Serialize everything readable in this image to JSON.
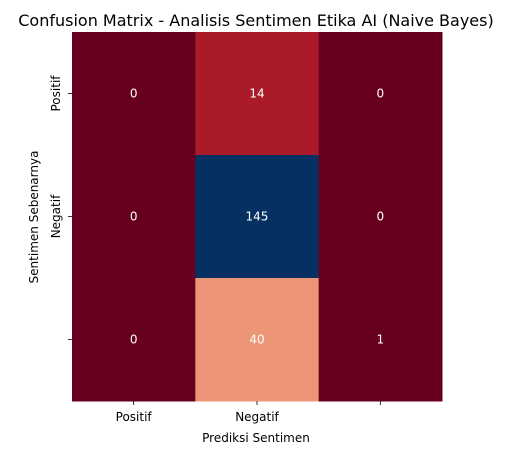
{
  "chart_data": {
    "type": "heatmap",
    "title": "Confusion Matrix - Analisis Sentimen Etika AI (Naive Bayes)",
    "xlabel": "Prediksi Sentimen",
    "ylabel": "Sentimen Sebenarnya",
    "x_tick_labels": [
      "Positif",
      "Negatif",
      ""
    ],
    "y_tick_labels": [
      "Positif",
      "Negatif",
      ""
    ],
    "matrix": [
      [
        0,
        14,
        0
      ],
      [
        0,
        145,
        0
      ],
      [
        0,
        40,
        1
      ]
    ],
    "colormap": "RdBu",
    "colors": {
      "0": "#67001f",
      "1": "#67001f",
      "14": "#ab1a29",
      "40": "#ec9677",
      "145": "#053061"
    },
    "annotation_colors": {
      "dark_bg": "#ffffff",
      "light_bg": "#ffffff"
    },
    "colorbar": false
  }
}
